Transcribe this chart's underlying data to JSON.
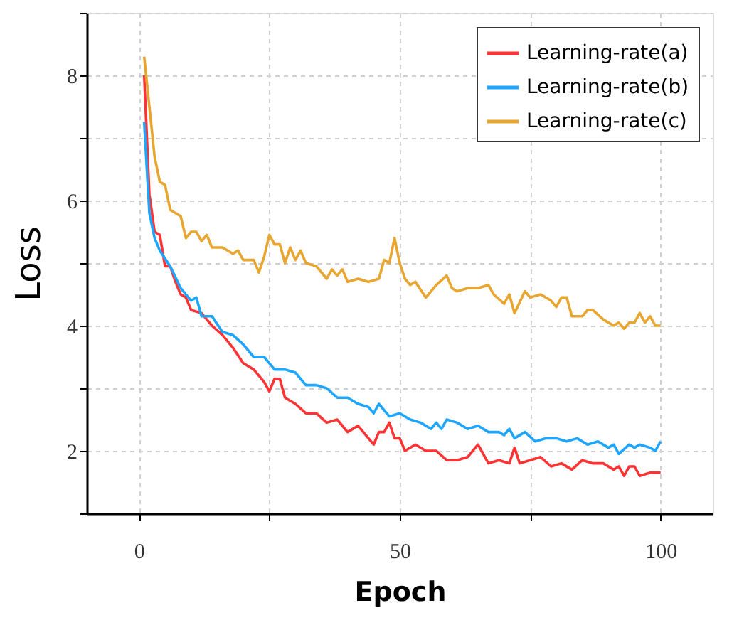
{
  "chart_data": {
    "type": "line",
    "xlabel": "Epoch",
    "ylabel": "Loss",
    "xlim": [
      -10,
      110
    ],
    "xticks": [
      0,
      {
        "value": 25,
        "label": null
      },
      50,
      {
        "value": 75,
        "label": null
      },
      100
    ],
    "ylim": [
      1,
      9
    ],
    "yticks": [
      {
        "value": 1,
        "label": null
      },
      2,
      {
        "value": 3,
        "label": null
      },
      4,
      {
        "value": 5,
        "label": null
      },
      6,
      {
        "value": 7,
        "label": null
      },
      8,
      {
        "value": 9,
        "label": null
      }
    ],
    "grid": true,
    "legend": "top right",
    "line_style": "solid",
    "marker": "none",
    "series": [
      {
        "name": "Learning-rate(a)",
        "color": "#ff3333",
        "x": [
          1,
          2,
          3,
          4,
          5,
          6,
          7,
          8,
          9,
          10,
          12,
          14,
          16,
          18,
          20,
          22,
          24,
          25,
          26,
          27,
          28,
          30,
          32,
          34,
          36,
          38,
          40,
          42,
          44,
          45,
          46,
          47,
          48,
          49,
          50,
          51,
          53,
          55,
          57,
          59,
          61,
          63,
          65,
          67,
          69,
          71,
          72,
          73,
          75,
          77,
          79,
          81,
          83,
          85,
          87,
          89,
          91,
          92,
          93,
          94,
          95,
          96,
          98,
          100
        ],
        "values": [
          8.0,
          6.1,
          5.5,
          5.45,
          4.95,
          4.95,
          4.7,
          4.5,
          4.45,
          4.25,
          4.2,
          4.0,
          3.85,
          3.65,
          3.4,
          3.3,
          3.1,
          2.95,
          3.15,
          3.15,
          2.85,
          2.75,
          2.6,
          2.6,
          2.45,
          2.5,
          2.3,
          2.4,
          2.2,
          2.1,
          2.3,
          2.3,
          2.45,
          2.2,
          2.2,
          2.0,
          2.1,
          2.0,
          2.0,
          1.85,
          1.85,
          1.9,
          2.1,
          1.8,
          1.85,
          1.8,
          2.05,
          1.8,
          1.85,
          1.9,
          1.75,
          1.8,
          1.7,
          1.85,
          1.8,
          1.8,
          1.7,
          1.75,
          1.6,
          1.75,
          1.75,
          1.6,
          1.65,
          1.65
        ]
      },
      {
        "name": "Learning-rate(b)",
        "color": "#1ea6ff",
        "x": [
          1,
          2,
          3,
          4,
          6,
          8,
          10,
          11,
          12,
          14,
          16,
          18,
          20,
          22,
          24,
          26,
          28,
          30,
          32,
          34,
          36,
          38,
          40,
          42,
          44,
          45,
          46,
          48,
          50,
          52,
          54,
          56,
          57,
          58,
          59,
          61,
          63,
          65,
          67,
          69,
          70,
          71,
          72,
          74,
          76,
          78,
          80,
          82,
          84,
          86,
          88,
          90,
          91,
          92,
          94,
          95,
          96,
          98,
          99,
          100
        ],
        "values": [
          7.25,
          5.8,
          5.4,
          5.2,
          4.95,
          4.6,
          4.4,
          4.45,
          4.15,
          4.15,
          3.9,
          3.85,
          3.7,
          3.5,
          3.5,
          3.3,
          3.3,
          3.25,
          3.05,
          3.05,
          3.0,
          2.85,
          2.85,
          2.75,
          2.7,
          2.6,
          2.75,
          2.55,
          2.6,
          2.5,
          2.45,
          2.35,
          2.45,
          2.35,
          2.5,
          2.45,
          2.35,
          2.4,
          2.3,
          2.3,
          2.25,
          2.35,
          2.2,
          2.3,
          2.15,
          2.2,
          2.2,
          2.15,
          2.2,
          2.1,
          2.15,
          2.05,
          2.1,
          1.95,
          2.1,
          2.05,
          2.1,
          2.05,
          2.0,
          2.15
        ]
      },
      {
        "name": "Learning-rate(c)",
        "color": "#e8a530",
        "x": [
          1,
          2,
          3,
          4,
          5,
          6,
          8,
          9,
          10,
          11,
          12,
          13,
          14,
          16,
          18,
          19,
          20,
          22,
          23,
          24,
          25,
          26,
          27,
          28,
          29,
          30,
          31,
          32,
          34,
          36,
          37,
          38,
          39,
          40,
          42,
          44,
          46,
          47,
          48,
          49,
          50,
          51,
          52,
          53,
          55,
          57,
          59,
          60,
          61,
          63,
          65,
          67,
          68,
          70,
          71,
          72,
          74,
          75,
          77,
          79,
          80,
          81,
          82,
          83,
          85,
          86,
          87,
          89,
          90,
          91,
          92,
          93,
          94,
          95,
          96,
          97,
          98,
          99,
          100
        ],
        "values": [
          8.3,
          7.5,
          6.7,
          6.3,
          6.25,
          5.85,
          5.75,
          5.4,
          5.5,
          5.5,
          5.35,
          5.45,
          5.25,
          5.25,
          5.15,
          5.2,
          5.05,
          5.05,
          4.85,
          5.1,
          5.45,
          5.3,
          5.3,
          5.0,
          5.25,
          5.05,
          5.2,
          5.0,
          4.95,
          4.75,
          4.9,
          4.8,
          4.9,
          4.7,
          4.75,
          4.7,
          4.75,
          5.05,
          5.0,
          5.4,
          5.0,
          4.75,
          4.65,
          4.7,
          4.45,
          4.65,
          4.8,
          4.6,
          4.55,
          4.6,
          4.6,
          4.65,
          4.5,
          4.35,
          4.5,
          4.2,
          4.55,
          4.45,
          4.5,
          4.4,
          4.3,
          4.45,
          4.45,
          4.15,
          4.15,
          4.25,
          4.25,
          4.1,
          4.05,
          4.0,
          4.05,
          3.95,
          4.05,
          4.05,
          4.2,
          4.05,
          4.15,
          4.0,
          4.0
        ]
      }
    ]
  }
}
